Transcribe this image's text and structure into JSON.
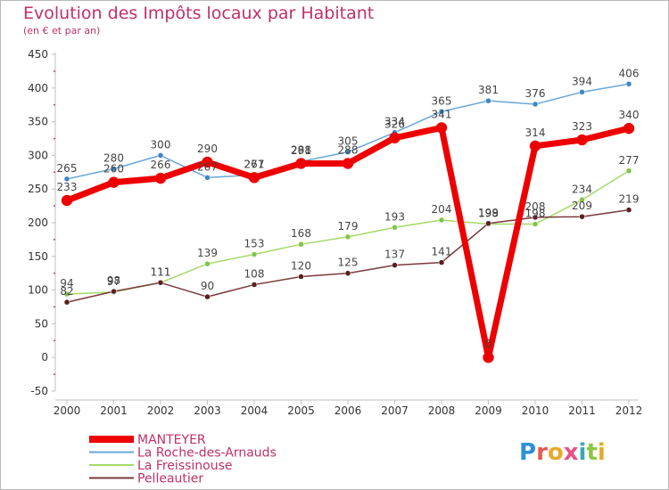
{
  "title": "Evolution des Impôts locaux par Habitant",
  "subtitle": "(en € et par an)",
  "brand": {
    "text": "Proxiti",
    "letters": [
      {
        "ch": "P",
        "color": "#2f8fd8"
      },
      {
        "ch": "r",
        "color": "#e85a4f"
      },
      {
        "ch": "o",
        "color": "#e8a92a"
      },
      {
        "ch": "x",
        "color": "#e84f85"
      },
      {
        "ch": "i",
        "color": "#3aa7b8"
      },
      {
        "ch": "t",
        "color": "#8cc63f"
      },
      {
        "ch": "i",
        "color": "#e8a92a"
      }
    ]
  },
  "chart_data": {
    "type": "line",
    "x": [
      "2000",
      "2001",
      "2002",
      "2003",
      "2004",
      "2005",
      "2006",
      "2007",
      "2008",
      "2009",
      "2010",
      "2011",
      "2012"
    ],
    "ylim": [
      -50,
      450
    ],
    "yticks": [
      -50,
      0,
      50,
      100,
      150,
      200,
      250,
      300,
      350,
      400,
      450
    ],
    "grid": false,
    "legend_position": "bottom-left",
    "series": [
      {
        "name": "La Roche-des-Arnauds",
        "color": "#6aa6d6",
        "marker": "#3c86c6",
        "width": 1.5,
        "values": [
          265,
          280,
          300,
          267,
          271,
          291,
          305,
          334,
          365,
          381,
          376,
          394,
          406
        ]
      },
      {
        "name": "La Freissinouse",
        "color": "#a6d86a",
        "marker": "#80c545",
        "width": 1.5,
        "values": [
          94,
          97,
          111,
          139,
          153,
          168,
          179,
          193,
          204,
          198,
          198,
          234,
          277
        ]
      },
      {
        "name": "Pelleautier",
        "color": "#7a3a3a",
        "marker": "#5a1f1f",
        "width": 1.5,
        "values": [
          82,
          98,
          111,
          90,
          108,
          120,
          125,
          137,
          141,
          199,
          208,
          209,
          219
        ]
      },
      {
        "name": "MANTEYER",
        "color": "#ee0000",
        "marker": "#ee0000",
        "width": 7,
        "values": [
          233,
          260,
          266,
          290,
          267,
          288,
          288,
          326,
          341,
          0,
          314,
          323,
          340
        ]
      }
    ],
    "legend_order": [
      "MANTEYER",
      "La Roche-des-Arnauds",
      "La Freissinouse",
      "Pelleautier"
    ]
  }
}
